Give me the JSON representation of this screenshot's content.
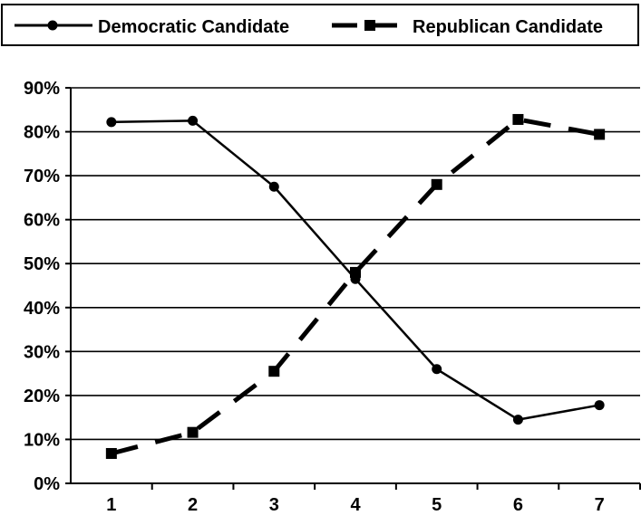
{
  "chart_data": {
    "type": "line",
    "categories": [
      "1",
      "2",
      "3",
      "4",
      "5",
      "6",
      "7"
    ],
    "y_tick_labels": [
      "0%",
      "10%",
      "20%",
      "30%",
      "40%",
      "50%",
      "60%",
      "70%",
      "80%",
      "90%"
    ],
    "ylim": [
      0,
      90
    ],
    "grid": true,
    "legend_position": "top",
    "series": [
      {
        "name": "Democratic Candidate",
        "values": [
          82.2,
          82.5,
          67.5,
          46.5,
          26.0,
          14.5,
          17.8
        ],
        "line_style": "solid",
        "marker": "circle",
        "color": "#000000"
      },
      {
        "name": "Republican Candidate",
        "values": [
          6.8,
          11.6,
          25.5,
          48.0,
          68.0,
          82.8,
          79.4
        ],
        "line_style": "dashed",
        "marker": "square",
        "color": "#000000"
      }
    ]
  }
}
